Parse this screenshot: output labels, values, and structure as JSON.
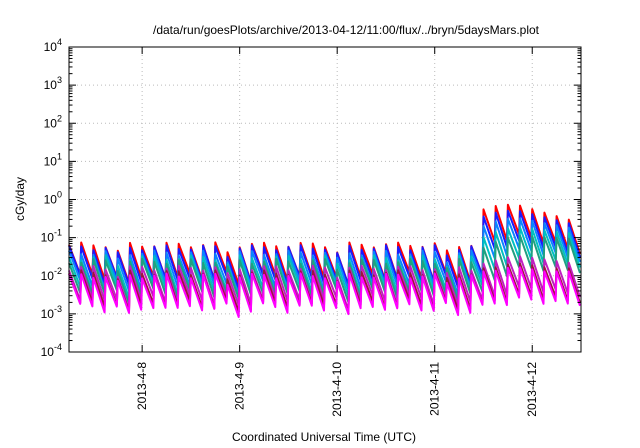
{
  "chart_data": {
    "type": "line",
    "title": "/data/run/goesPlots/archive/2013-04-12/11:00/flux/../bryn/5daysMars.plot",
    "xlabel": "Coordinated Universal Time (UTC)",
    "ylabel": "cGy/day",
    "y_scale": "log",
    "ylim": [
      0.0001,
      10000
    ],
    "y_ticks": [
      {
        "base": "10",
        "exp": "-4",
        "value": 0.0001
      },
      {
        "base": "10",
        "exp": "-3",
        "value": 0.001
      },
      {
        "base": "10",
        "exp": "-2",
        "value": 0.01
      },
      {
        "base": "10",
        "exp": "-1",
        "value": 0.1
      },
      {
        "base": "10",
        "exp": "0",
        "value": 1
      },
      {
        "base": "10",
        "exp": "1",
        "value": 10
      },
      {
        "base": "10",
        "exp": "2",
        "value": 100
      },
      {
        "base": "10",
        "exp": "3",
        "value": 1000
      },
      {
        "base": "10",
        "exp": "4",
        "value": 10000
      }
    ],
    "xlim": [
      "2013-04-07 06:00",
      "2013-04-12 12:00"
    ],
    "x_ticks": [
      "2013-4-8",
      "2013-4-9",
      "2013-4-10",
      "2013-4-11",
      "2013-4-12"
    ],
    "grid": true,
    "legend": "none",
    "event_start": "2013-04-11 11:00",
    "series": [
      {
        "color": "#ff0000",
        "quiet_level": 0.065,
        "event_level": 1.4,
        "event_decay": 0.24
      },
      {
        "color": "#1a1aff",
        "quiet_level": 0.055,
        "event_level": 0.9,
        "event_decay": 0.2
      },
      {
        "color": "#0a84ff",
        "quiet_level": 0.04,
        "event_level": 0.5,
        "event_decay": 0.16
      },
      {
        "color": "#00c0c0",
        "quiet_level": 0.03,
        "event_level": 0.25,
        "event_decay": 0.12
      },
      {
        "color": "#20a080",
        "quiet_level": 0.024,
        "event_level": 0.13,
        "event_decay": 0.09
      },
      {
        "color": "#c020c0",
        "quiet_level": 0.016,
        "event_level": 0.045,
        "event_decay": 0.02
      },
      {
        "color": "#a01040",
        "quiet_level": 0.012,
        "event_level": 0.03,
        "event_decay": 0.012
      },
      {
        "color": "#ff00ff",
        "quiet_level": 0.01,
        "event_level": 0.025,
        "event_decay": 0.009
      }
    ]
  }
}
